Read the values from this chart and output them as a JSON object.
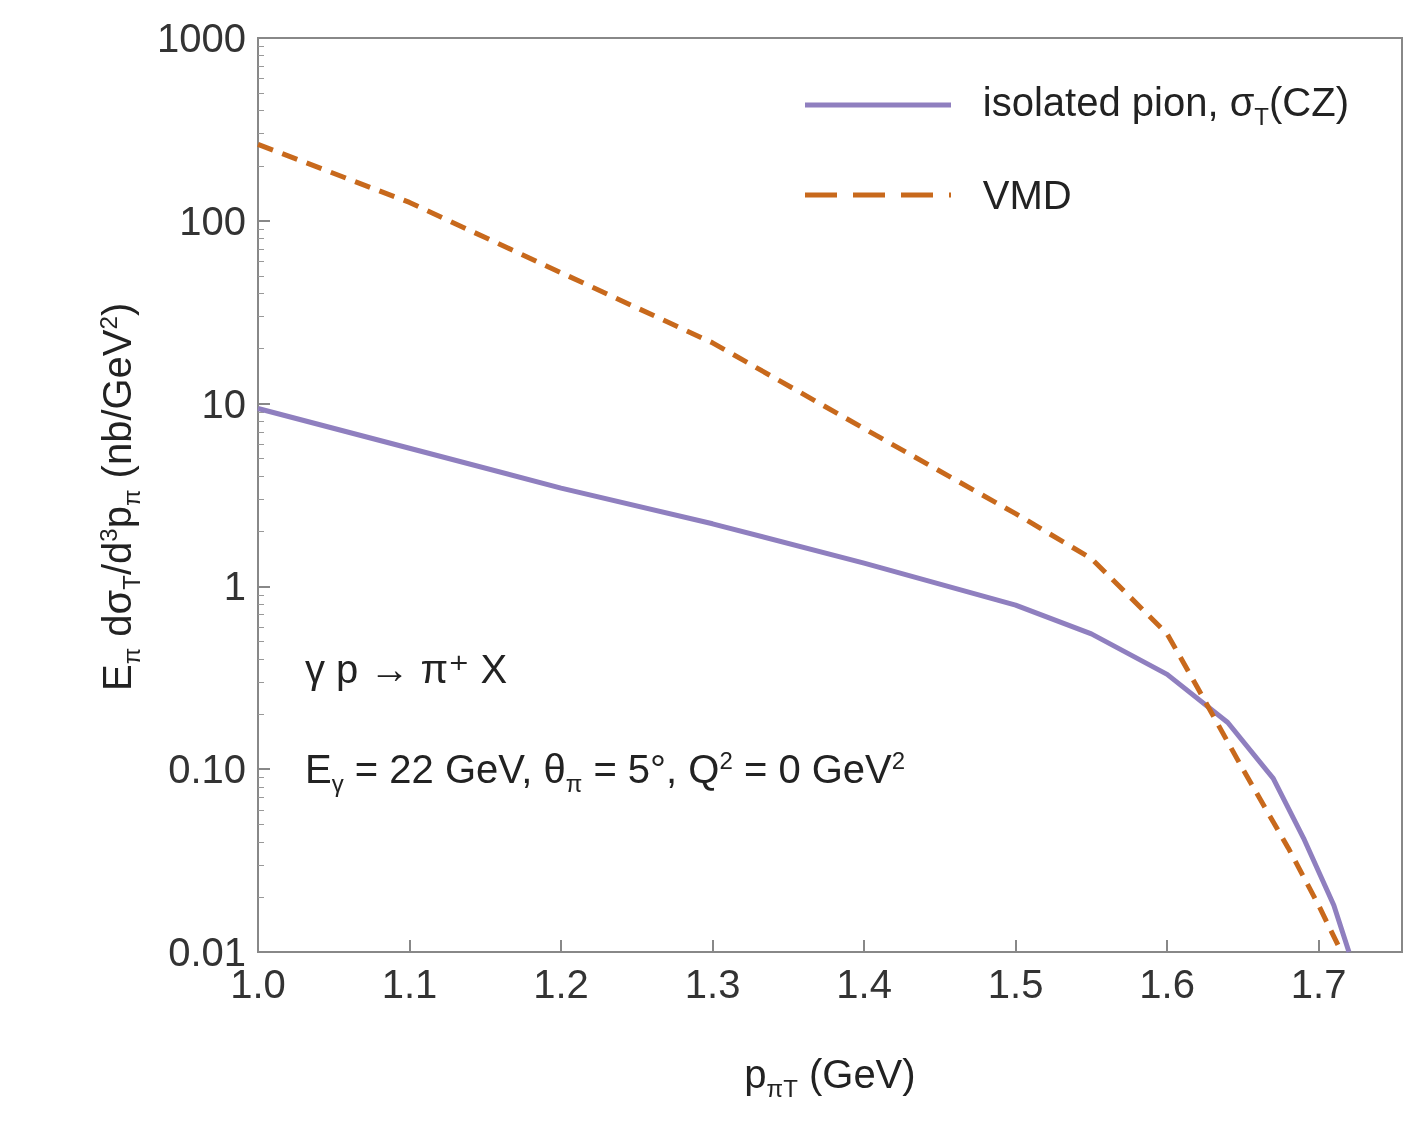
{
  "chart_data": {
    "type": "line",
    "xlabel": "p$_{πT}$ (GeV)",
    "ylabel": "E$_{π}$ dσ$_{T}$/d$^{3}$p$_{π}$ (nb/GeV$^{2}$)",
    "xlim": [
      1.0,
      1.755
    ],
    "xticks": [
      {
        "value": 1,
        "label": "1.0"
      },
      1.1,
      1.2,
      1.3,
      1.4,
      1.5,
      1.6,
      1.7
    ],
    "ylim": [
      0.01,
      1000
    ],
    "yticks": [
      0.01,
      {
        "value": 0.1,
        "label": "0.10"
      },
      1,
      10,
      100,
      1000
    ],
    "log": "y",
    "grid": false,
    "legend": "top right",
    "marker": "none",
    "annotations": [
      "γ p → π⁺ X",
      "E$_{γ}$ = 22 GeV, θ$_{π}$ = 5°, Q$^{2}$ = 0 GeV$^{2}$"
    ],
    "series": [
      {
        "name": "isolated pion, σ$_{T}$(CZ)",
        "color": "#8f7fbf",
        "line_style": "solid",
        "x": [
          1.0,
          1.1,
          1.2,
          1.3,
          1.4,
          1.5,
          1.55,
          1.6,
          1.64,
          1.67,
          1.69,
          1.71,
          1.72
        ],
        "values": [
          9.4,
          5.7,
          3.45,
          2.2,
          1.34,
          0.79,
          0.55,
          0.33,
          0.18,
          0.089,
          0.042,
          0.018,
          0.01
        ]
      },
      {
        "name": "VMD",
        "color": "#c8691c",
        "line_style": "dashed",
        "x": [
          1.0,
          1.1,
          1.2,
          1.3,
          1.4,
          1.5,
          1.55,
          1.6,
          1.62,
          1.65,
          1.68,
          1.7,
          1.715
        ],
        "values": [
          262,
          126,
          52,
          21.5,
          7.3,
          2.5,
          1.42,
          0.55,
          0.28,
          0.1,
          0.037,
          0.018,
          0.01
        ]
      }
    ]
  }
}
